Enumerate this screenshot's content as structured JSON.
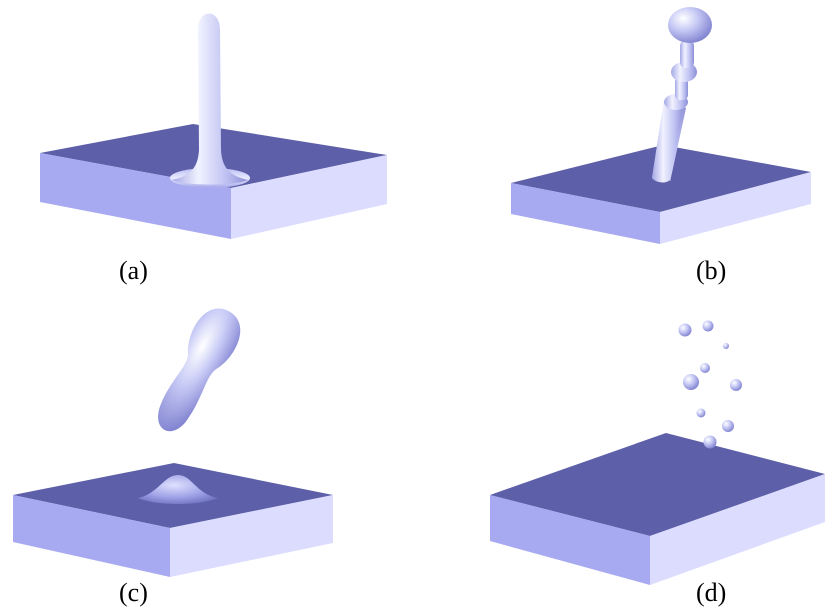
{
  "panels": [
    {
      "label": "(a)"
    },
    {
      "label": "(b)"
    },
    {
      "label": "(c)"
    },
    {
      "label": "(d)"
    }
  ],
  "colors": {
    "plate_top": "#5d5fa8",
    "plate_front": "#a7a9f1",
    "plate_side": "#dcdcff",
    "fluid_light": "#eef0ff",
    "fluid_mid": "#c3c6f4",
    "fluid_dark": "#8d90d8"
  }
}
